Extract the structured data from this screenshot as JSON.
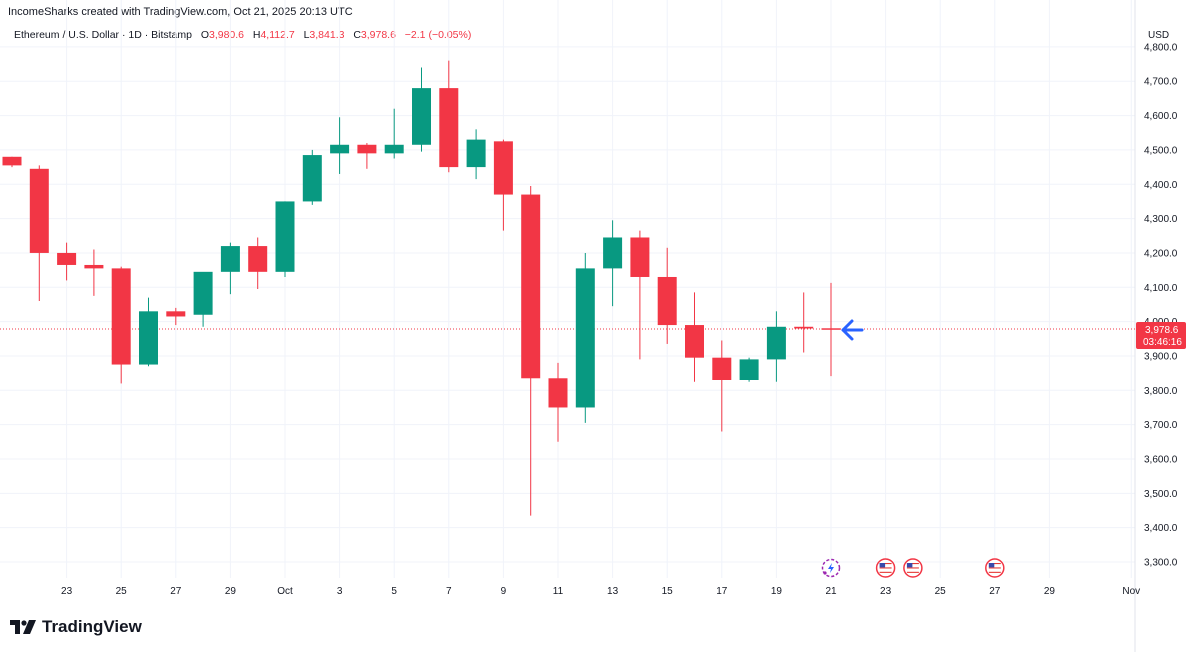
{
  "header": {
    "attribution": "IncomeSharks created with TradingView.com, Oct 21, 2025 20:13 UTC"
  },
  "legend": {
    "symbol": "Ethereum / U.S. Dollar · 1D · Bitstamp",
    "open_label": "O",
    "open_value": "3,980.6",
    "high_label": "H",
    "high_value": "4,112.7",
    "low_label": "L",
    "low_value": "3,841.3",
    "close_label": "C",
    "close_value": "3,978.6",
    "change": "−2.1 (−0.05%)"
  },
  "currency": "USD",
  "price_tag": {
    "price": "3,978.6",
    "countdown": "03:46:16"
  },
  "brand": {
    "name": "TradingView"
  },
  "colors": {
    "up": "#089981",
    "down": "#f23645",
    "arrow": "#2962ff",
    "grid": "#f0f3fa"
  },
  "chart_data": {
    "type": "candlestick",
    "y_ticks": [
      "3,300.0",
      "3,400.0",
      "3,500.0",
      "3,600.0",
      "3,700.0",
      "3,800.0",
      "3,900.0",
      "4,000.0",
      "4,100.0",
      "4,200.0",
      "4,300.0",
      "4,400.0",
      "4,500.0",
      "4,600.0",
      "4,700.0",
      "4,800.0"
    ],
    "y_tick_values": [
      3300,
      3400,
      3500,
      3600,
      3700,
      3800,
      3900,
      4000,
      4100,
      4200,
      4300,
      4400,
      4500,
      4600,
      4700,
      4800
    ],
    "x_ticks": [
      "23",
      "25",
      "27",
      "29",
      "Oct",
      "3",
      "5",
      "7",
      "9",
      "11",
      "13",
      "15",
      "17",
      "19",
      "21",
      "23",
      "25",
      "27",
      "29",
      "Nov"
    ],
    "x_tick_days": [
      2,
      4,
      6,
      8,
      10,
      12,
      14,
      16,
      18,
      20,
      22,
      24,
      26,
      28,
      30,
      32,
      34,
      36,
      38,
      41
    ],
    "current_price": 3978.6,
    "candles": [
      {
        "day": 0,
        "open": 4480,
        "high": 4480,
        "low": 4450,
        "close": 4455
      },
      {
        "day": 1,
        "open": 4445,
        "high": 4455,
        "low": 4060,
        "close": 4200
      },
      {
        "day": 2,
        "open": 4200,
        "high": 4230,
        "low": 4120,
        "close": 4165
      },
      {
        "day": 3,
        "open": 4165,
        "high": 4210,
        "low": 4075,
        "close": 4155
      },
      {
        "day": 4,
        "open": 4155,
        "high": 4160,
        "low": 3820,
        "close": 3875
      },
      {
        "day": 5,
        "open": 3875,
        "high": 4070,
        "low": 3870,
        "close": 4030
      },
      {
        "day": 6,
        "open": 4030,
        "high": 4040,
        "low": 3990,
        "close": 4015
      },
      {
        "day": 7,
        "open": 4020,
        "high": 4140,
        "low": 3985,
        "close": 4145
      },
      {
        "day": 8,
        "open": 4145,
        "high": 4230,
        "low": 4080,
        "close": 4220
      },
      {
        "day": 9,
        "open": 4220,
        "high": 4245,
        "low": 4095,
        "close": 4145
      },
      {
        "day": 10,
        "open": 4145,
        "high": 4350,
        "low": 4130,
        "close": 4350
      },
      {
        "day": 11,
        "open": 4350,
        "high": 4500,
        "low": 4340,
        "close": 4485
      },
      {
        "day": 12,
        "open": 4490,
        "high": 4595,
        "low": 4430,
        "close": 4515
      },
      {
        "day": 13,
        "open": 4515,
        "high": 4520,
        "low": 4445,
        "close": 4490
      },
      {
        "day": 14,
        "open": 4490,
        "high": 4620,
        "low": 4475,
        "close": 4515
      },
      {
        "day": 15,
        "open": 4515,
        "high": 4740,
        "low": 4495,
        "close": 4680
      },
      {
        "day": 16,
        "open": 4680,
        "high": 4760,
        "low": 4435,
        "close": 4450
      },
      {
        "day": 17,
        "open": 4450,
        "high": 4560,
        "low": 4415,
        "close": 4530
      },
      {
        "day": 18,
        "open": 4525,
        "high": 4530,
        "low": 4265,
        "close": 4370
      },
      {
        "day": 19,
        "open": 4370,
        "high": 4395,
        "low": 3435,
        "close": 3835
      },
      {
        "day": 20,
        "open": 3835,
        "high": 3880,
        "low": 3650,
        "close": 3750
      },
      {
        "day": 21,
        "open": 3750,
        "high": 4200,
        "low": 3705,
        "close": 4155
      },
      {
        "day": 22,
        "open": 4155,
        "high": 4295,
        "low": 4045,
        "close": 4245
      },
      {
        "day": 23,
        "open": 4245,
        "high": 4265,
        "low": 3890,
        "close": 4130
      },
      {
        "day": 24,
        "open": 4130,
        "high": 4215,
        "low": 3935,
        "close": 3990
      },
      {
        "day": 25,
        "open": 3990,
        "high": 4085,
        "low": 3825,
        "close": 3895
      },
      {
        "day": 26,
        "open": 3895,
        "high": 3945,
        "low": 3680,
        "close": 3830
      },
      {
        "day": 27,
        "open": 3830,
        "high": 3895,
        "low": 3825,
        "close": 3890
      },
      {
        "day": 28,
        "open": 3890,
        "high": 4030,
        "low": 3825,
        "close": 3985
      },
      {
        "day": 29,
        "open": 3985,
        "high": 4085,
        "low": 3910,
        "close": 3980
      },
      {
        "day": 30,
        "open": 3980.6,
        "high": 4112.7,
        "low": 3841.3,
        "close": 3978.6
      }
    ],
    "event_markers": [
      {
        "day": 30,
        "icon": "lightning-event-icon"
      },
      {
        "day": 32,
        "icon": "us-flag-icon"
      },
      {
        "day": 33,
        "icon": "us-flag-icon"
      },
      {
        "day": 36,
        "icon": "us-flag-icon"
      }
    ]
  }
}
